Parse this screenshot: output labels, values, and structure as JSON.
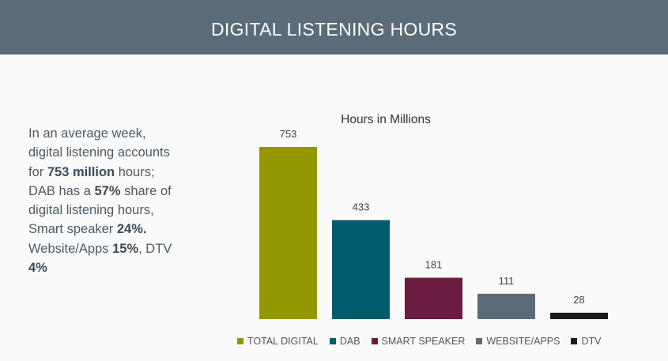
{
  "header": {
    "title": "DIGITAL LISTENING HOURS"
  },
  "summary": {
    "p1": "In an average week, digital listening accounts for ",
    "b1": "753 million",
    "p2": " hours; DAB has a ",
    "b2": "57%",
    "p3": " share of digital listening hours, Smart speaker ",
    "b3": "24%.",
    "p4": " Website/Apps ",
    "b4": "15%",
    "p5": ", DTV ",
    "b5": "4%"
  },
  "chart_data": {
    "type": "bar",
    "title": "Hours in Millions",
    "categories": [
      "TOTAL DIGITAL",
      "DAB",
      "SMART SPEAKER",
      "WEBSITE/APPS",
      "DTV"
    ],
    "values": [
      753,
      433,
      181,
      111,
      28
    ],
    "value_labels": [
      "753",
      "433",
      "181",
      "111",
      "28"
    ],
    "colors": [
      "#949800",
      "#005c6e",
      "#6b1c40",
      "#5b6b78",
      "#1a1a1a"
    ],
    "xlabel": "",
    "ylabel": "",
    "ylim": [
      0,
      753
    ],
    "grid": false,
    "legend": "bottom"
  }
}
